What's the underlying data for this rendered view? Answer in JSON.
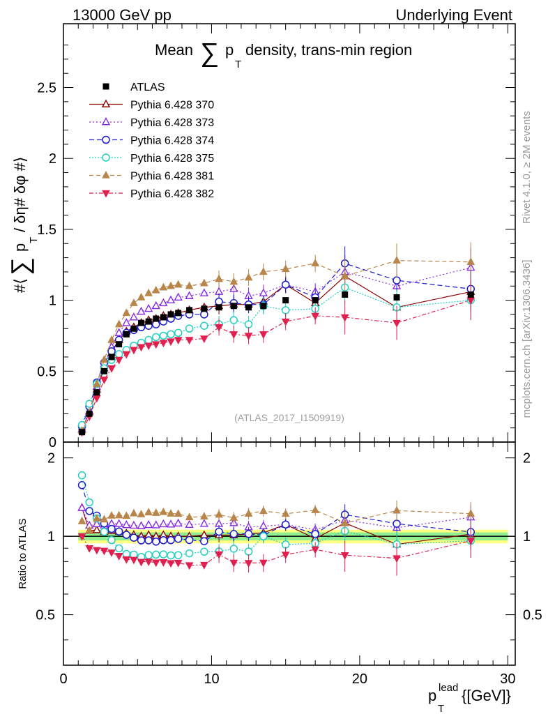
{
  "header": {
    "left": "13000 GeV pp",
    "right": "Underlying Event"
  },
  "side_labels": {
    "rivet": "Rivet 4.1.0, ≥ 2M events",
    "mcplots": "mcplots.cern.ch [arXiv:1306.3436]"
  },
  "colors": {
    "ATLAS": "#000000",
    "370": "#8b0000",
    "373": "#8a2be2",
    "374": "#1a1ad0",
    "375": "#20d0c0",
    "381": "#b8864a",
    "382": "#e0204f",
    "band_inner": "#90ee90",
    "band_outer": "#ffff80"
  },
  "chart_data": {
    "type": "line",
    "title_prefix": "Mean",
    "title_suffix": "density, trans-min region",
    "title_sum_symbol": "∑",
    "title_var": "p",
    "title_var_sub": "T",
    "watermark": "(ATLAS_2017_I1509919)",
    "ylabel_main_prefix": "#⟨",
    "ylabel_main_sum": "∑",
    "ylabel_main_var": "p",
    "ylabel_main_sub": "T",
    "ylabel_main_suffix": "/ δη# δφ #⟩",
    "ylabel_ratio": "Ratio to ATLAS",
    "xlabel_var": "p",
    "xlabel_sub": "T",
    "xlabel_sup": "lead",
    "xlabel_unit": "{[GeV]}",
    "xlim": [
      0,
      30.5
    ],
    "ylim_main": [
      0,
      2.95
    ],
    "ylim_ratio": [
      0.32,
      2.3
    ],
    "x_ticks": [
      "0",
      "10",
      "20",
      "30"
    ],
    "y_ticks_main": [
      "0",
      "0.5",
      "1",
      "1.5",
      "2",
      "2.5"
    ],
    "y_ticks_ratio": [
      "0.5",
      "1",
      "2"
    ],
    "x": [
      1.25,
      1.75,
      2.25,
      2.75,
      3.25,
      3.75,
      4.25,
      4.75,
      5.25,
      5.75,
      6.25,
      6.75,
      7.25,
      7.75,
      8.5,
      9.5,
      10.5,
      11.5,
      12.5,
      13.5,
      15,
      17,
      19,
      22.5,
      27.5
    ],
    "atlas": [
      0.07,
      0.2,
      0.35,
      0.5,
      0.6,
      0.69,
      0.76,
      0.8,
      0.84,
      0.85,
      0.87,
      0.88,
      0.9,
      0.91,
      0.93,
      0.94,
      0.95,
      0.96,
      0.95,
      0.96,
      1.0,
      1.0,
      1.04,
      1.02,
      1.04
    ],
    "series": [
      {
        "name": "Pythia 6.428 370",
        "key": "370",
        "marker": "triangle-up-open",
        "dash": "none",
        "values": [
          0.09,
          0.21,
          0.37,
          0.52,
          0.63,
          0.72,
          0.78,
          0.81,
          0.84,
          0.86,
          0.87,
          0.89,
          0.9,
          0.91,
          0.93,
          0.95,
          0.96,
          0.97,
          0.97,
          0.99,
          1.11,
          0.98,
          1.17,
          0.95,
          1.06
        ]
      },
      {
        "name": "Pythia 6.428 373",
        "key": "373",
        "marker": "triangle-up-open",
        "dash": "2,3",
        "values": [
          0.09,
          0.22,
          0.39,
          0.55,
          0.67,
          0.77,
          0.84,
          0.88,
          0.92,
          0.94,
          0.96,
          0.98,
          1.0,
          1.02,
          1.03,
          1.05,
          1.06,
          1.08,
          1.03,
          1.05,
          1.11,
          1.06,
          1.2,
          1.1,
          1.23
        ]
      },
      {
        "name": "Pythia 6.428 374",
        "key": "374",
        "marker": "circle-open",
        "dash": "7,4",
        "values": [
          0.11,
          0.25,
          0.42,
          0.56,
          0.64,
          0.72,
          0.77,
          0.79,
          0.81,
          0.82,
          0.83,
          0.85,
          0.87,
          0.89,
          0.9,
          0.9,
          0.99,
          0.98,
          0.97,
          0.97,
          1.11,
          1.02,
          1.26,
          1.14,
          1.08
        ]
      },
      {
        "name": "Pythia 6.428 375",
        "key": "375",
        "marker": "circle-open",
        "dash": "2,2",
        "values": [
          0.12,
          0.27,
          0.41,
          0.52,
          0.58,
          0.62,
          0.65,
          0.68,
          0.7,
          0.72,
          0.74,
          0.75,
          0.76,
          0.77,
          0.8,
          0.82,
          0.83,
          0.86,
          0.83,
          0.96,
          0.93,
          0.94,
          1.09,
          0.95,
          1.0
        ]
      },
      {
        "name": "Pythia 6.428 381",
        "key": "381",
        "marker": "triangle-up-filled",
        "dash": "6,4",
        "values": [
          0.08,
          0.21,
          0.41,
          0.58,
          0.72,
          0.83,
          0.91,
          0.98,
          1.02,
          1.05,
          1.07,
          1.09,
          1.1,
          1.11,
          1.1,
          1.12,
          1.15,
          1.13,
          1.16,
          1.2,
          1.22,
          1.26,
          1.17,
          1.28,
          1.27
        ]
      },
      {
        "name": "Pythia 6.428 382",
        "key": "382",
        "marker": "triangle-down-filled",
        "dash": "6,3,2,3",
        "values": [
          0.07,
          0.18,
          0.31,
          0.44,
          0.52,
          0.58,
          0.62,
          0.65,
          0.67,
          0.68,
          0.69,
          0.7,
          0.71,
          0.72,
          0.72,
          0.73,
          0.81,
          0.76,
          0.75,
          0.76,
          0.85,
          0.89,
          0.88,
          0.84,
          1.0
        ]
      }
    ],
    "atlas_label": "ATLAS"
  }
}
